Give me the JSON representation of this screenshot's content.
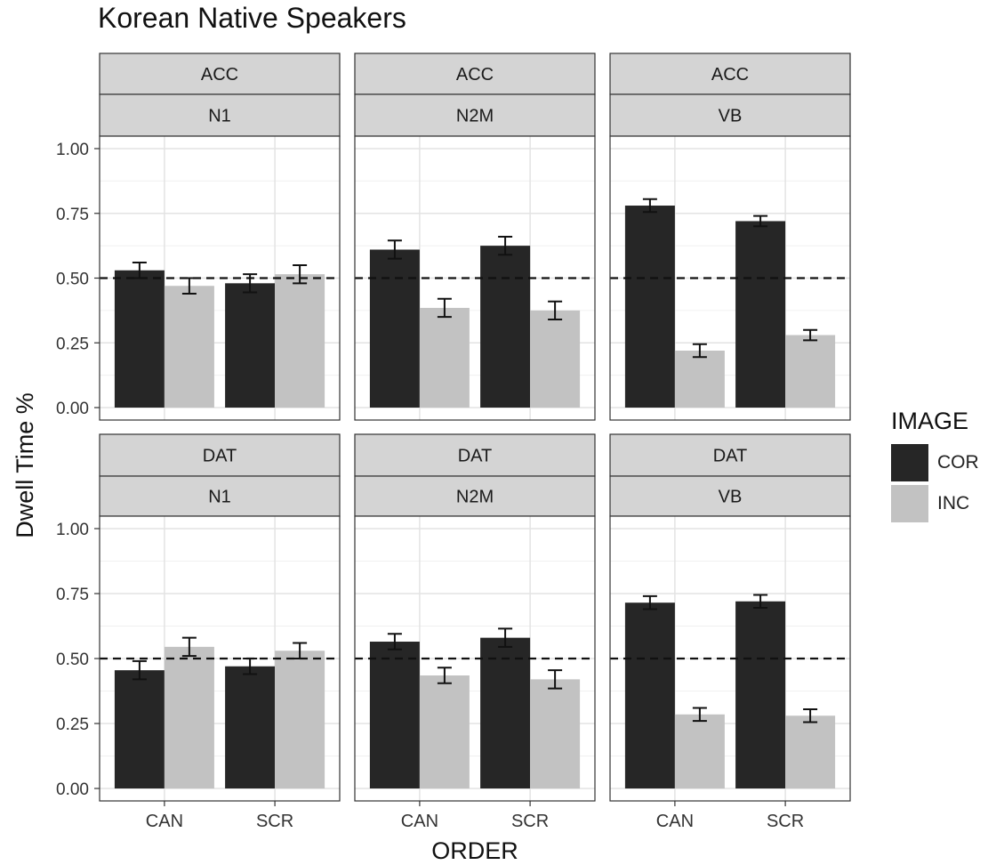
{
  "chart_data": {
    "type": "bar",
    "title": "Korean Native Speakers",
    "xlabel": "ORDER",
    "ylabel": "Dwell Time %",
    "ylim": [
      0,
      1
    ],
    "yticks": [
      "0.00",
      "0.25",
      "0.50",
      "0.75",
      "1.00"
    ],
    "categories": [
      "CAN",
      "SCR"
    ],
    "reference_line": 0.5,
    "legend": {
      "title": "IMAGE",
      "position": "right",
      "entries": [
        {
          "name": "COR",
          "color": "#262626"
        },
        {
          "name": "INC",
          "color": "#c2c2c2"
        }
      ]
    },
    "panels": [
      {
        "row_strip": "ACC",
        "col_strip": "N1",
        "series": [
          {
            "name": "COR",
            "values": [
              0.53,
              0.48
            ],
            "errors": [
              0.03,
              0.035
            ]
          },
          {
            "name": "INC",
            "values": [
              0.47,
              0.515
            ],
            "errors": [
              0.03,
              0.035
            ]
          }
        ]
      },
      {
        "row_strip": "ACC",
        "col_strip": "N2M",
        "series": [
          {
            "name": "COR",
            "values": [
              0.61,
              0.625
            ],
            "errors": [
              0.035,
              0.035
            ]
          },
          {
            "name": "INC",
            "values": [
              0.385,
              0.375
            ],
            "errors": [
              0.035,
              0.035
            ]
          }
        ]
      },
      {
        "row_strip": "ACC",
        "col_strip": "VB",
        "series": [
          {
            "name": "COR",
            "values": [
              0.78,
              0.72
            ],
            "errors": [
              0.025,
              0.02
            ]
          },
          {
            "name": "INC",
            "values": [
              0.22,
              0.28
            ],
            "errors": [
              0.025,
              0.02
            ]
          }
        ]
      },
      {
        "row_strip": "DAT",
        "col_strip": "N1",
        "series": [
          {
            "name": "COR",
            "values": [
              0.455,
              0.47
            ],
            "errors": [
              0.035,
              0.03
            ]
          },
          {
            "name": "INC",
            "values": [
              0.545,
              0.53
            ],
            "errors": [
              0.035,
              0.03
            ]
          }
        ]
      },
      {
        "row_strip": "DAT",
        "col_strip": "N2M",
        "series": [
          {
            "name": "COR",
            "values": [
              0.565,
              0.58
            ],
            "errors": [
              0.03,
              0.035
            ]
          },
          {
            "name": "INC",
            "values": [
              0.435,
              0.42
            ],
            "errors": [
              0.03,
              0.035
            ]
          }
        ]
      },
      {
        "row_strip": "DAT",
        "col_strip": "VB",
        "series": [
          {
            "name": "COR",
            "values": [
              0.715,
              0.72
            ],
            "errors": [
              0.025,
              0.025
            ]
          },
          {
            "name": "INC",
            "values": [
              0.285,
              0.28
            ],
            "errors": [
              0.025,
              0.025
            ]
          }
        ]
      }
    ]
  }
}
